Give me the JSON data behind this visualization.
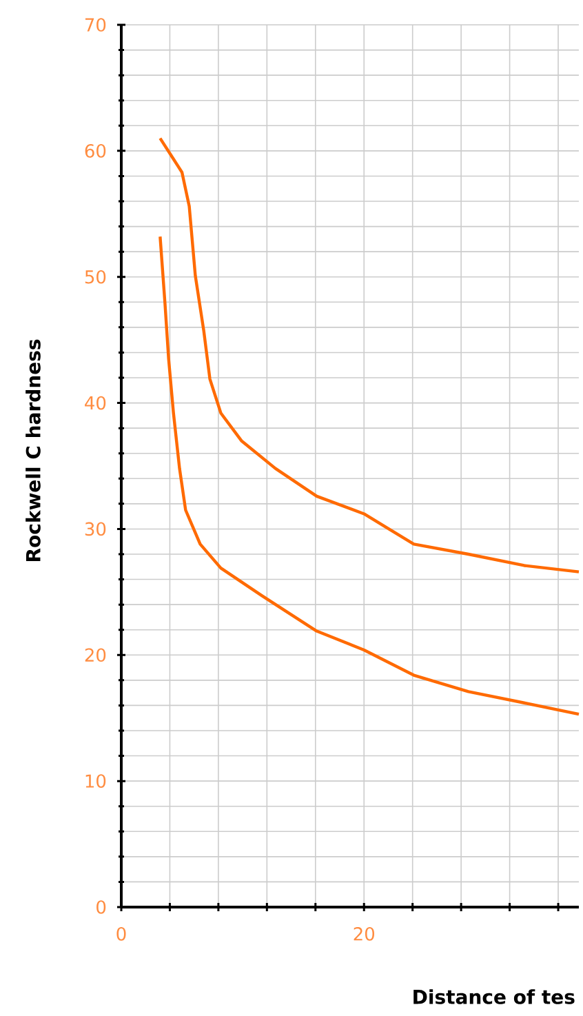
{
  "chart_data": {
    "type": "line",
    "xlabel": "Distance of tes",
    "ylabel": "Rockwell C hardness",
    "xlim": [
      0,
      37.7
    ],
    "ylim": [
      0,
      70
    ],
    "xticks": [
      0,
      {
        "value": 4,
        "label": null
      },
      {
        "value": 8,
        "label": null
      },
      {
        "value": 12,
        "label": null
      },
      {
        "value": 16,
        "label": null
      },
      20,
      {
        "value": 24,
        "label": null
      },
      {
        "value": 28,
        "label": null
      },
      {
        "value": 32,
        "label": null
      },
      {
        "value": 36,
        "label": null
      }
    ],
    "yticks": [
      0,
      10,
      20,
      30,
      40,
      50,
      60,
      70
    ],
    "grid": true,
    "marker": "none",
    "line_style": "solid",
    "series": [
      {
        "color": "#ff6a00",
        "x": [
          3.2,
          5.0,
          5.6,
          6.1,
          6.8,
          7.3,
          8.2,
          9.9,
          12.7,
          16.1,
          20.0,
          24.1,
          28.6,
          33.2,
          37.7
        ],
        "values": [
          61,
          58.3,
          55.6,
          50.1,
          45.7,
          41.9,
          39.2,
          37,
          34.8,
          32.6,
          31.2,
          28.8,
          28,
          27.1,
          26.6
        ]
      },
      {
        "color": "#ff6a00",
        "x": [
          3.2,
          3.6,
          3.9,
          4.3,
          4.8,
          5.3,
          6.5,
          8.2,
          11.6,
          16.1,
          20.0,
          24.1,
          28.6,
          33.2,
          37.7
        ],
        "values": [
          53.2,
          47.9,
          43.5,
          39.2,
          34.8,
          31.5,
          28.8,
          26.9,
          24.7,
          21.9,
          20.4,
          18.4,
          17.1,
          16.2,
          15.3
        ]
      }
    ]
  }
}
